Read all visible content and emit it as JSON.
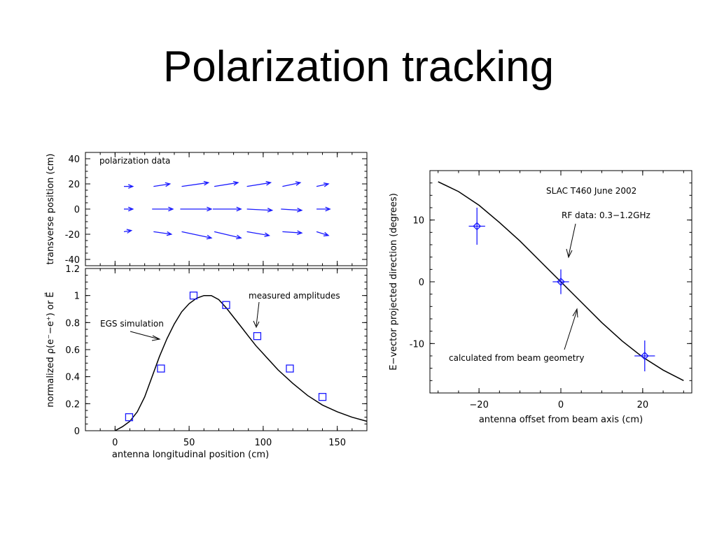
{
  "slide": {
    "title": "Polarization tracking"
  },
  "chart_data": [
    {
      "type": "vector_field",
      "panel": "top-left",
      "annotation": "polarization data",
      "xlim": [
        -20,
        170
      ],
      "ylim": [
        -45,
        45
      ],
      "ylabel": "transverse position (cm)",
      "yticks": [
        40,
        20,
        0,
        -20,
        -40
      ],
      "rows": [
        {
          "y": 18,
          "vectors": [
            {
              "x": 6,
              "dx": 6,
              "dy": 0
            },
            {
              "x": 26,
              "dx": 11,
              "dy": 2
            },
            {
              "x": 45,
              "dx": 18,
              "dy": 3
            },
            {
              "x": 67,
              "dx": 16,
              "dy": 3
            },
            {
              "x": 89,
              "dx": 16,
              "dy": 3
            },
            {
              "x": 113,
              "dx": 12,
              "dy": 3
            },
            {
              "x": 136,
              "dx": 8,
              "dy": 2
            }
          ]
        },
        {
          "y": 0,
          "vectors": [
            {
              "x": 6,
              "dx": 6,
              "dy": 0
            },
            {
              "x": 25,
              "dx": 14,
              "dy": 0
            },
            {
              "x": 44,
              "dx": 21,
              "dy": 0
            },
            {
              "x": 66,
              "dx": 19,
              "dy": 0
            },
            {
              "x": 89,
              "dx": 17,
              "dy": -1
            },
            {
              "x": 112,
              "dx": 14,
              "dy": -1
            },
            {
              "x": 136,
              "dx": 9,
              "dy": 0
            }
          ]
        },
        {
          "y": -18,
          "vectors": [
            {
              "x": 6,
              "dx": 5,
              "dy": 1
            },
            {
              "x": 26,
              "dx": 12,
              "dy": -2
            },
            {
              "x": 45,
              "dx": 20,
              "dy": -5
            },
            {
              "x": 67,
              "dx": 18,
              "dy": -5
            },
            {
              "x": 89,
              "dx": 15,
              "dy": -3
            },
            {
              "x": 113,
              "dx": 13,
              "dy": -1
            },
            {
              "x": 136,
              "dx": 8,
              "dy": -3
            }
          ]
        }
      ]
    },
    {
      "type": "scatter+line",
      "panel": "bottom-left",
      "xlim": [
        -20,
        170
      ],
      "ylim": [
        0,
        1.2
      ],
      "xlabel": "antenna longitudinal position (cm)",
      "ylabel": "normalized ρ(e⁻−e⁺) or E⃗",
      "xticks": [
        0,
        50,
        100,
        150
      ],
      "ytick_labels": [
        "0",
        "0.2",
        "0.4",
        "0.6",
        "0.8",
        "1",
        "1.2"
      ],
      "points": {
        "name": "measured amplitudes",
        "x": [
          9.5,
          31,
          53,
          75,
          96,
          118,
          140
        ],
        "y": [
          0.1,
          0.46,
          1.0,
          0.93,
          0.7,
          0.46,
          0.25
        ]
      },
      "curve": {
        "name": "EGS simulation",
        "x": [
          0,
          5,
          10,
          15,
          20,
          25,
          30,
          35,
          40,
          45,
          50,
          55,
          60,
          65,
          70,
          75,
          80,
          85,
          90,
          95,
          100,
          110,
          120,
          130,
          140,
          150,
          160,
          170
        ],
        "y": [
          0,
          0.03,
          0.07,
          0.14,
          0.25,
          0.4,
          0.55,
          0.68,
          0.79,
          0.88,
          0.94,
          0.98,
          1.0,
          1.0,
          0.97,
          0.91,
          0.84,
          0.77,
          0.7,
          0.63,
          0.57,
          0.45,
          0.35,
          0.26,
          0.19,
          0.14,
          0.1,
          0.07
        ]
      },
      "annotations": [
        "measured amplitudes",
        "EGS simulation"
      ]
    },
    {
      "type": "scatter+line",
      "panel": "right",
      "xlim": [
        -32,
        32
      ],
      "ylim": [
        -18,
        18
      ],
      "xlabel": "antenna offset from beam axis (cm)",
      "ylabel": "E−vector projected direction (degrees)",
      "xticks": [
        -20,
        0,
        20
      ],
      "yticks": [
        10,
        0,
        -10
      ],
      "points": {
        "name": "RF data: 0.3−1.2GHz",
        "x": [
          -20.5,
          0,
          20.5
        ],
        "y": [
          9.0,
          0.0,
          -12.0
        ],
        "xerr": [
          2.0,
          2.0,
          2.5
        ],
        "yerr": [
          3.0,
          2.0,
          2.5
        ]
      },
      "curve": {
        "name": "calculated from beam geometry",
        "x": [
          -30,
          -25,
          -20,
          -15,
          -10,
          -5,
          0,
          5,
          10,
          15,
          20,
          25,
          30
        ],
        "y": [
          16.2,
          14.6,
          12.4,
          9.6,
          6.6,
          3.3,
          0,
          -3.3,
          -6.6,
          -9.6,
          -12.2,
          -14.3,
          -16.0
        ]
      },
      "annotations": [
        "SLAC T460 June 2002",
        "RF data: 0.3−1.2GHz",
        "calculated from beam geometry"
      ]
    }
  ]
}
